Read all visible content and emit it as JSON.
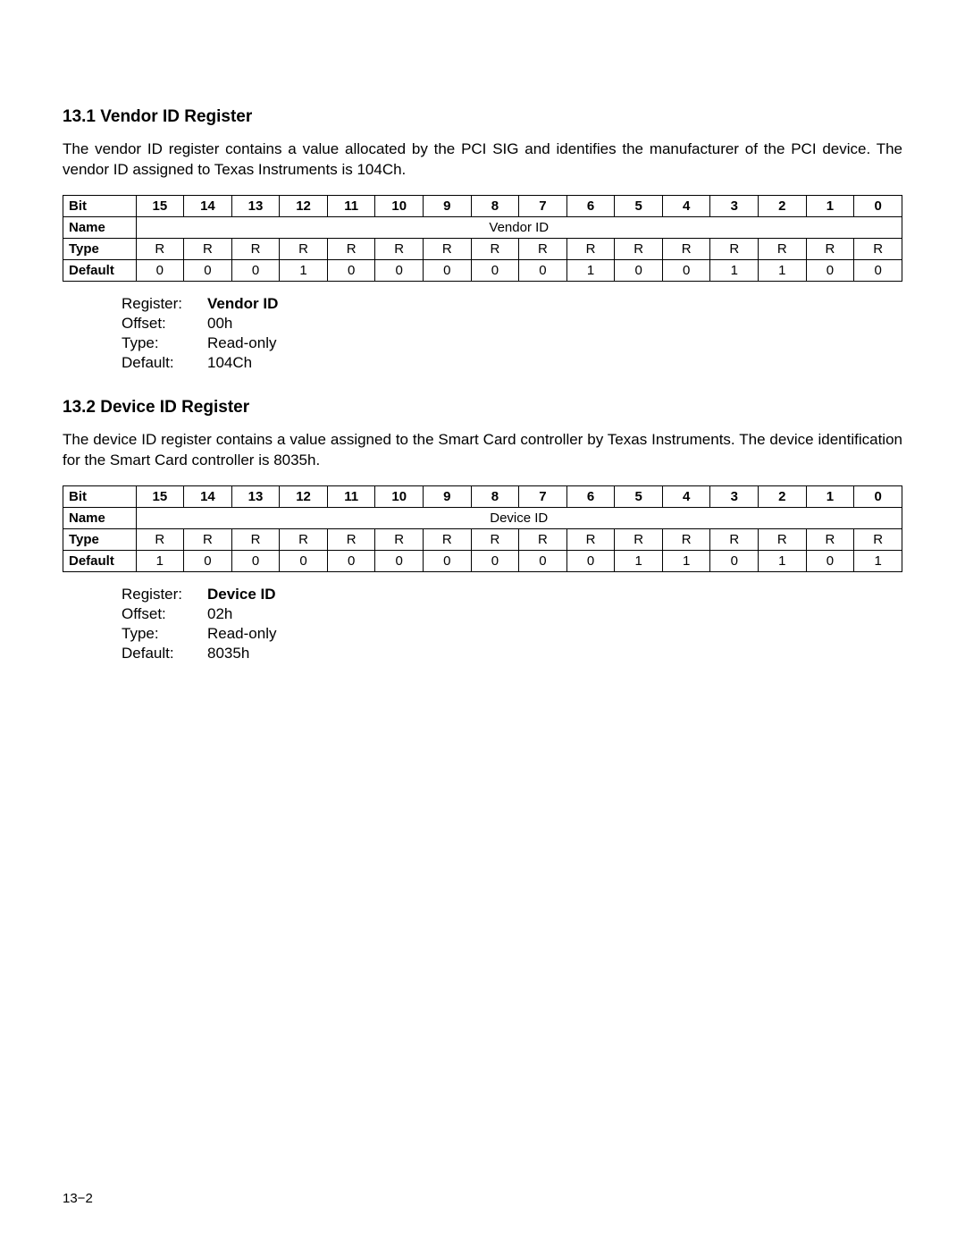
{
  "page_number": "13−2",
  "sections": [
    {
      "title": "13.1 Vendor ID Register",
      "desc": "The vendor ID register contains a value allocated by the PCI SIG and identifies the manufacturer of the PCI device. The vendor ID assigned to Texas Instruments is 104Ch.",
      "table": {
        "row_labels": [
          "Bit",
          "Name",
          "Type",
          "Default"
        ],
        "bits": [
          "15",
          "14",
          "13",
          "12",
          "11",
          "10",
          "9",
          "8",
          "7",
          "6",
          "5",
          "4",
          "3",
          "2",
          "1",
          "0"
        ],
        "name_span": "Vendor ID",
        "types": [
          "R",
          "R",
          "R",
          "R",
          "R",
          "R",
          "R",
          "R",
          "R",
          "R",
          "R",
          "R",
          "R",
          "R",
          "R",
          "R"
        ],
        "defaults": [
          "0",
          "0",
          "0",
          "1",
          "0",
          "0",
          "0",
          "0",
          "0",
          "1",
          "0",
          "0",
          "1",
          "1",
          "0",
          "0"
        ]
      },
      "info": {
        "rows": [
          {
            "label": "Register:",
            "value": "Vendor ID",
            "bold": true
          },
          {
            "label": "Offset:",
            "value": "00h"
          },
          {
            "label": "Type:",
            "value": "Read-only"
          },
          {
            "label": "Default:",
            "value": "104Ch"
          }
        ]
      }
    },
    {
      "title": "13.2 Device ID Register",
      "desc": "The device ID register contains a value assigned to the Smart Card controller by Texas Instruments. The device identification for the Smart Card controller is 8035h.",
      "table": {
        "row_labels": [
          "Bit",
          "Name",
          "Type",
          "Default"
        ],
        "bits": [
          "15",
          "14",
          "13",
          "12",
          "11",
          "10",
          "9",
          "8",
          "7",
          "6",
          "5",
          "4",
          "3",
          "2",
          "1",
          "0"
        ],
        "name_span": "Device ID",
        "types": [
          "R",
          "R",
          "R",
          "R",
          "R",
          "R",
          "R",
          "R",
          "R",
          "R",
          "R",
          "R",
          "R",
          "R",
          "R",
          "R"
        ],
        "defaults": [
          "1",
          "0",
          "0",
          "0",
          "0",
          "0",
          "0",
          "0",
          "0",
          "0",
          "1",
          "1",
          "0",
          "1",
          "0",
          "1"
        ]
      },
      "info": {
        "rows": [
          {
            "label": "Register:",
            "value": "Device ID",
            "bold": true
          },
          {
            "label": "Offset:",
            "value": "02h"
          },
          {
            "label": "Type:",
            "value": "Read-only"
          },
          {
            "label": "Default:",
            "value": "8035h"
          }
        ]
      }
    }
  ]
}
